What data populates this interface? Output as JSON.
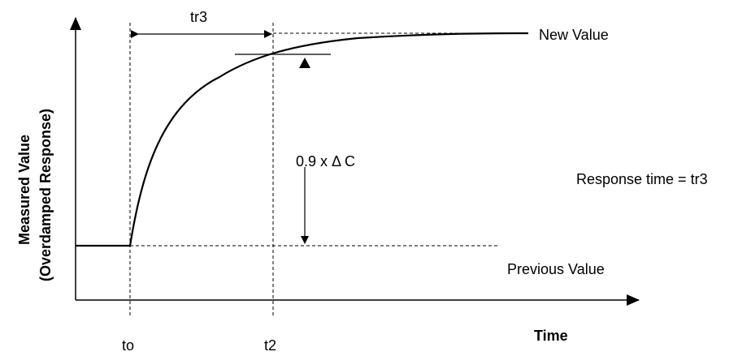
{
  "labels": {
    "y_axis_line1": "Measured Value",
    "y_axis_line2": "(Overdamped Response)",
    "x_axis": "Time",
    "new_value": "New Value",
    "previous_value": "Previous Value",
    "response_time": "Response time = tr3",
    "tr3": "tr3",
    "delta_c": "0.9 x Δ C",
    "t0": "to",
    "t2": "t2"
  }
}
